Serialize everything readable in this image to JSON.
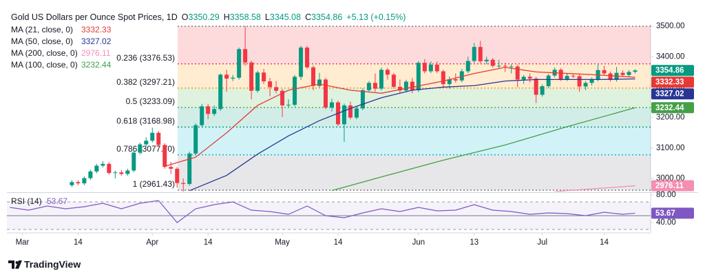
{
  "chart_data": {
    "type": "candlestick",
    "title": "Gold US Dollars per Ounce Spot Prices, 1D",
    "ohlc_letters": [
      "O",
      "H",
      "L",
      "C"
    ],
    "change": "+5.13 (+0.15%)",
    "up_color": "#089981",
    "down_color": "#f23645",
    "open": [
      2978,
      2988,
      2984,
      3001,
      3023,
      3042,
      3048,
      3018,
      3020,
      3015,
      3026,
      3085,
      3112,
      3124,
      3150,
      3110,
      3038,
      3032,
      2985,
      2982,
      3082,
      3175,
      3237,
      3212,
      3228,
      3341,
      3328,
      3331,
      3425,
      3381,
      3288,
      3348,
      3319,
      3300,
      3288,
      3240,
      3242,
      3334,
      3430,
      3365,
      3304,
      3325,
      3233,
      3250,
      3178,
      3240,
      3200,
      3230,
      3290,
      3314,
      3295,
      3357,
      3341,
      3301,
      3289,
      3318,
      3290,
      3380,
      3352,
      3374,
      3352,
      3310,
      3326,
      3322,
      3352,
      3386,
      3432,
      3385,
      3390,
      3370,
      3370,
      3368,
      3368,
      3325,
      3334,
      3328,
      3275,
      3303,
      3338,
      3357,
      3326,
      3337,
      3336,
      3302,
      3314,
      3325,
      3356,
      3345,
      3324,
      3347,
      3340,
      3350.29
    ],
    "high": [
      2994,
      2994,
      3007,
      3029,
      3048,
      3057,
      3054,
      3026,
      3028,
      3032,
      3091,
      3118,
      3135,
      3167,
      3156,
      3116,
      3055,
      3038,
      3000,
      3088,
      3181,
      3245,
      3245,
      3240,
      3345,
      3357,
      3340,
      3430,
      3500,
      3387,
      3354,
      3360,
      3330,
      3320,
      3294,
      3260,
      3340,
      3436,
      3436,
      3371,
      3347,
      3331,
      3262,
      3256,
      3246,
      3252,
      3236,
      3296,
      3320,
      3345,
      3365,
      3363,
      3347,
      3325,
      3324,
      3330,
      3386,
      3392,
      3385,
      3385,
      3358,
      3335,
      3345,
      3360,
      3400,
      3445,
      3452,
      3400,
      3396,
      3390,
      3380,
      3375,
      3374,
      3340,
      3345,
      3334,
      3309,
      3344,
      3365,
      3363,
      3345,
      3345,
      3342,
      3320,
      3332,
      3375,
      3370,
      3351,
      3366,
      3355,
      3356,
      3358.58
    ],
    "low": [
      2972,
      2978,
      2978,
      2995,
      3017,
      3036,
      3012,
      3000,
      3009,
      3009,
      3020,
      3079,
      3106,
      3118,
      3104,
      3032,
      3015,
      2970,
      2957,
      2976,
      3076,
      3170,
      3195,
      3205,
      3222,
      3285,
      3320,
      3325,
      3370,
      3260,
      3282,
      3310,
      3270,
      3280,
      3202,
      3234,
      3236,
      3324,
      3359,
      3290,
      3298,
      3227,
      3220,
      3172,
      3120,
      3194,
      3194,
      3224,
      3284,
      3285,
      3289,
      3325,
      3295,
      3280,
      3283,
      3280,
      3284,
      3345,
      3346,
      3346,
      3300,
      3295,
      3315,
      3316,
      3346,
      3380,
      3379,
      3375,
      3364,
      3360,
      3350,
      3345,
      3300,
      3310,
      3315,
      3248,
      3269,
      3297,
      3332,
      3320,
      3320,
      3330,
      3285,
      3290,
      3305,
      3319,
      3338,
      3318,
      3318,
      3334,
      3334,
      3345.08
    ],
    "close": [
      2988,
      2984,
      3001,
      3023,
      3042,
      3048,
      3018,
      3020,
      3015,
      3026,
      3085,
      3112,
      3124,
      3150,
      3110,
      3038,
      3032,
      2985,
      2982,
      3082,
      3175,
      3237,
      3212,
      3228,
      3341,
      3328,
      3331,
      3425,
      3381,
      3288,
      3348,
      3319,
      3300,
      3288,
      3240,
      3242,
      3334,
      3430,
      3365,
      3304,
      3325,
      3233,
      3250,
      3178,
      3240,
      3200,
      3230,
      3290,
      3314,
      3295,
      3357,
      3341,
      3301,
      3289,
      3318,
      3290,
      3380,
      3352,
      3374,
      3352,
      3310,
      3326,
      3322,
      3352,
      3386,
      3432,
      3385,
      3390,
      3370,
      3370,
      3368,
      3368,
      3325,
      3334,
      3328,
      3275,
      3303,
      3338,
      3357,
      3326,
      3337,
      3336,
      3302,
      3314,
      3325,
      3356,
      3345,
      3324,
      3347,
      3340,
      3350,
      3354.86
    ],
    "xlim": [
      -10.5,
      93.5
    ],
    "xticks": [
      {
        "value": -8,
        "label": "Mar"
      },
      {
        "value": 1,
        "label": "14"
      },
      {
        "value": 13,
        "label": "Apr"
      },
      {
        "value": 22,
        "label": "14"
      },
      {
        "value": 34,
        "label": "May"
      },
      {
        "value": 43,
        "label": "14"
      },
      {
        "value": 56,
        "label": "Jun"
      },
      {
        "value": 65,
        "label": "13"
      },
      {
        "value": 76,
        "label": "Jul"
      },
      {
        "value": 86,
        "label": "14"
      }
    ],
    "ylim": [
      2957,
      3507
    ],
    "yticks": [
      {
        "value": 3500,
        "label": "3500.00"
      },
      {
        "value": 3400,
        "label": "3400.00"
      },
      {
        "value": 3300,
        "label": "3300.00"
      },
      {
        "value": 3200,
        "label": "3200.00"
      },
      {
        "value": 3100,
        "label": "3100.00"
      },
      {
        "value": 3000,
        "label": "3000.00"
      }
    ],
    "ma": [
      {
        "name": "MA (21, close, 0)",
        "color": "#e53935",
        "x": [
          15,
          20,
          25,
          30,
          35,
          40,
          45,
          50,
          55,
          60,
          65,
          70,
          75,
          80,
          85,
          91
        ],
        "values": [
          3040,
          3070,
          3150,
          3240,
          3290,
          3310,
          3290,
          3280,
          3300,
          3320,
          3345,
          3365,
          3350,
          3345,
          3340,
          3332.33
        ]
      },
      {
        "name": "MA (50, close, 0)",
        "color": "#283593",
        "x": [
          19,
          25,
          30,
          35,
          40,
          45,
          50,
          55,
          60,
          65,
          70,
          75,
          80,
          85,
          91
        ],
        "values": [
          2960,
          3010,
          3080,
          3140,
          3190,
          3230,
          3265,
          3290,
          3300,
          3305,
          3320,
          3325,
          3325,
          3325,
          3327.02
        ]
      },
      {
        "name": "MA (200, close, 0)",
        "color": "#f48fb1",
        "x": [
          78,
          91
        ],
        "values": [
          2957,
          2976.11
        ]
      },
      {
        "name": "MA (100, close, 0)",
        "color": "#43a047",
        "x": [
          42,
          50,
          60,
          70,
          80,
          91
        ],
        "values": [
          2960,
          3005,
          3060,
          3110,
          3170,
          3232.44
        ]
      }
    ],
    "fib": {
      "levels": [
        3500,
        3376.53,
        3297.21,
        3233.09,
        3168.98,
        3077.7,
        2961.43
      ],
      "labels": [
        null,
        "0.236 (3376.53)",
        "0.382 (3297.21)",
        "0.5 (3233.09)",
        "0.618 (3168.98)",
        "0.786 (3077.70)",
        "1 (2961.43)"
      ],
      "colors": [
        "#787b86",
        "#f23645",
        "#ff9800",
        "#4caf50",
        "#089981",
        "#00bcd4",
        "#787b86"
      ]
    },
    "rsi": {
      "name": "RSI (14)",
      "color": "#7e57c2",
      "x": [
        -10,
        -7,
        -4,
        -1,
        2,
        5,
        8,
        11,
        14,
        17,
        20,
        23,
        26,
        29,
        32,
        35,
        38,
        41,
        44,
        47,
        50,
        53,
        56,
        59,
        62,
        65,
        68,
        71,
        74,
        77,
        80,
        83,
        86,
        89,
        91
      ],
      "values": [
        62,
        58,
        64,
        60,
        63,
        68,
        60,
        68,
        72,
        40,
        60,
        66,
        70,
        58,
        56,
        52,
        64,
        50,
        47,
        54,
        60,
        56,
        62,
        57,
        58,
        66,
        58,
        56,
        52,
        54,
        53,
        50,
        55,
        52,
        53.67
      ],
      "ylim": [
        28,
        83
      ],
      "yticks": [
        {
          "value": 80,
          "label": "80.00"
        },
        {
          "value": 40,
          "label": "40.00"
        }
      ],
      "bands": [
        70,
        30
      ],
      "midline": 50
    },
    "brand": "TradingView"
  }
}
